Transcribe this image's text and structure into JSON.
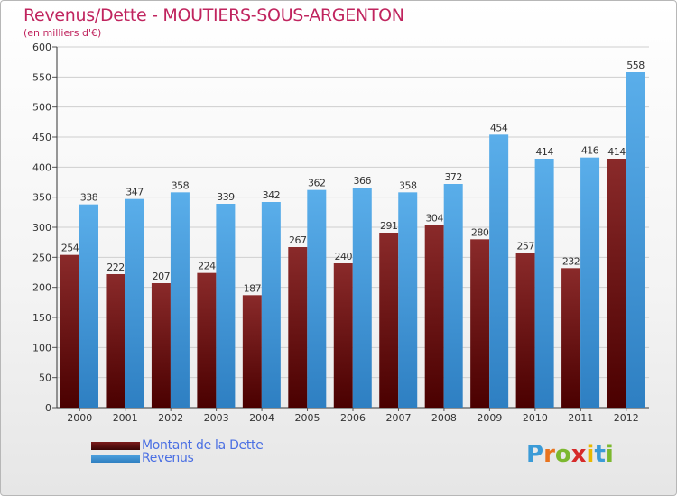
{
  "title": "Revenus/Dette - MOUTIERS-SOUS-ARGENTON",
  "subtitle": "(en milliers d'€)",
  "legend": {
    "items": [
      {
        "label": "Montant de la Dette",
        "color": "#7a1a1a"
      },
      {
        "label": "Revenus",
        "color": "#4fa3e0"
      }
    ]
  },
  "logo": {
    "letters": [
      "P",
      "r",
      "o",
      "x",
      "i",
      "t",
      "i"
    ],
    "colors": [
      "#3b9bd7",
      "#e9731d",
      "#7cb82f",
      "#d62a2a",
      "#e8b800",
      "#3b9bd7",
      "#7cb82f"
    ]
  },
  "colors": {
    "debt": "#7a1a1a",
    "revenue": "#4fa3e0",
    "title": "#c0245e",
    "axis_text": "#333333",
    "grid": "#cfcfcf"
  },
  "chart_data": {
    "type": "bar",
    "categories": [
      "2000",
      "2001",
      "2002",
      "2003",
      "2004",
      "2005",
      "2006",
      "2007",
      "2008",
      "2009",
      "2010",
      "2011",
      "2012"
    ],
    "series": [
      {
        "name": "Montant de la Dette",
        "values": [
          254,
          222,
          207,
          224,
          187,
          267,
          240,
          291,
          304,
          280,
          257,
          232,
          414
        ]
      },
      {
        "name": "Revenus",
        "values": [
          338,
          347,
          358,
          339,
          342,
          362,
          366,
          358,
          372,
          454,
          414,
          416,
          558
        ]
      }
    ],
    "ylim": [
      0,
      600
    ],
    "yticks": [
      0,
      50,
      100,
      150,
      200,
      250,
      300,
      350,
      400,
      450,
      500,
      550,
      600
    ],
    "grid": true,
    "legend_position": "bottom-left"
  }
}
